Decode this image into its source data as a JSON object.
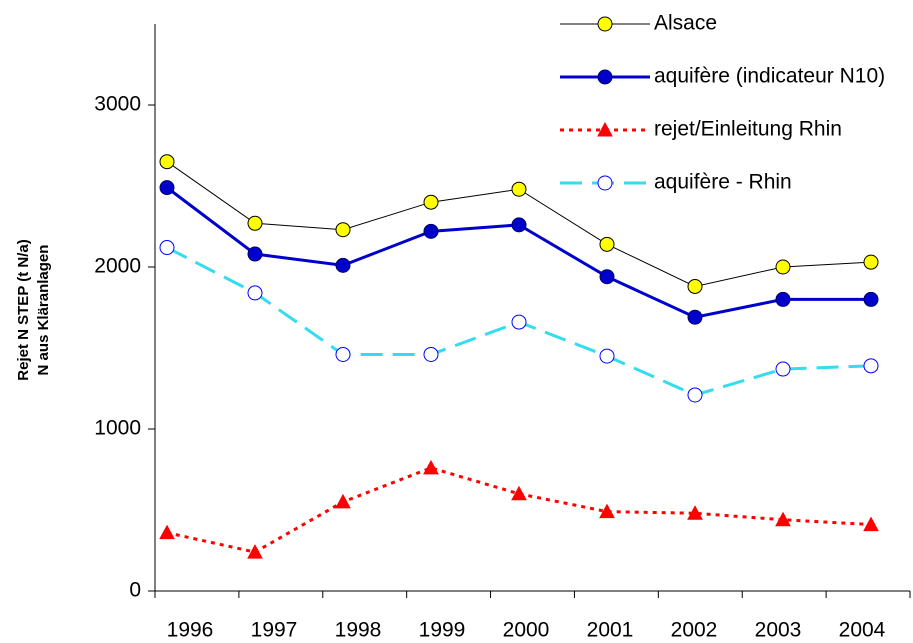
{
  "chart_data": {
    "type": "line",
    "y_label": [
      "Rejet N STEP (t N/a)",
      "N aus Kläranlagen"
    ],
    "categories": [
      "1996",
      "1997",
      "1998",
      "1999",
      "2000",
      "2001",
      "2002",
      "2003",
      "2004"
    ],
    "ylim": [
      0,
      3500
    ],
    "yticks": [
      0,
      1000,
      2000,
      3000
    ],
    "grid": false,
    "legend": "top-right",
    "series": [
      {
        "name": "Alsace",
        "color": "#000000",
        "marker_fill": "#ffff00",
        "marker_edge": "#000000",
        "marker": "circle",
        "dash": "solid",
        "width": 1,
        "values": [
          2650,
          2270,
          2230,
          2400,
          2480,
          2140,
          1880,
          2000,
          2030
        ]
      },
      {
        "name": "aquifère (indicateur N10)",
        "color": "#0000cc",
        "marker_fill": "#0000cc",
        "marker_edge": "#000066",
        "marker": "circle",
        "dash": "solid",
        "width": 3,
        "values": [
          2490,
          2080,
          2010,
          2220,
          2260,
          1940,
          1690,
          1800,
          1800
        ]
      },
      {
        "name": "rejet/Einleitung Rhin",
        "color": "#ff0000",
        "marker_fill": "#ff0000",
        "marker_edge": "#ff0000",
        "marker": "triangle",
        "dash": "dotted",
        "width": 3,
        "values": [
          360,
          240,
          550,
          760,
          600,
          490,
          480,
          440,
          410
        ]
      },
      {
        "name": "aquifère - Rhin",
        "color": "#33ddee",
        "marker_fill": "#ffffff",
        "marker_edge": "#0000ff",
        "marker": "circle",
        "dash": "dashed",
        "width": 3,
        "values": [
          2120,
          1840,
          1460,
          1460,
          1660,
          1450,
          1210,
          1370,
          1390
        ]
      }
    ]
  }
}
